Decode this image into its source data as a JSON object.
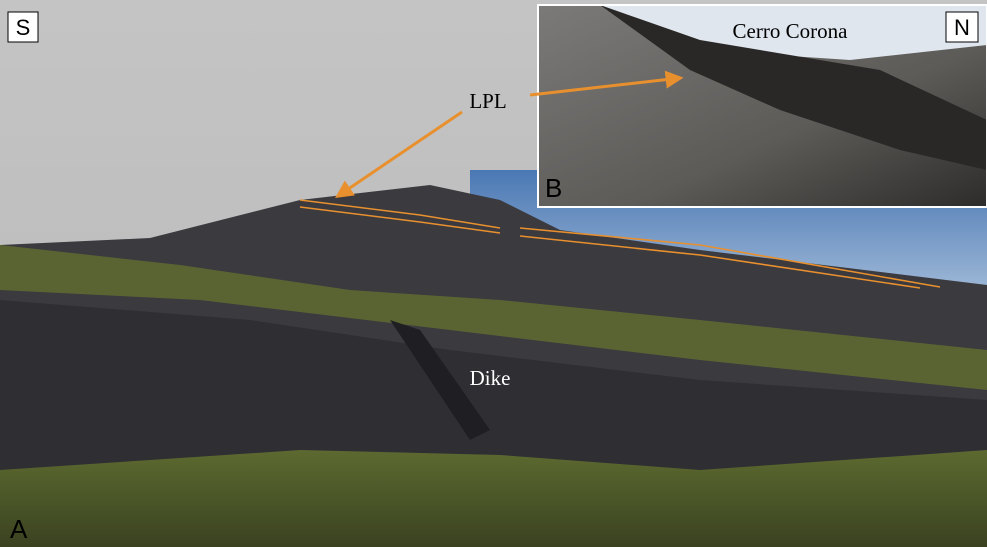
{
  "labels": {
    "panel_a": "A",
    "panel_b": "B",
    "south": "S",
    "north": "N",
    "place": "Cerro Corona",
    "layer": "LPL",
    "feature": "Dike"
  }
}
